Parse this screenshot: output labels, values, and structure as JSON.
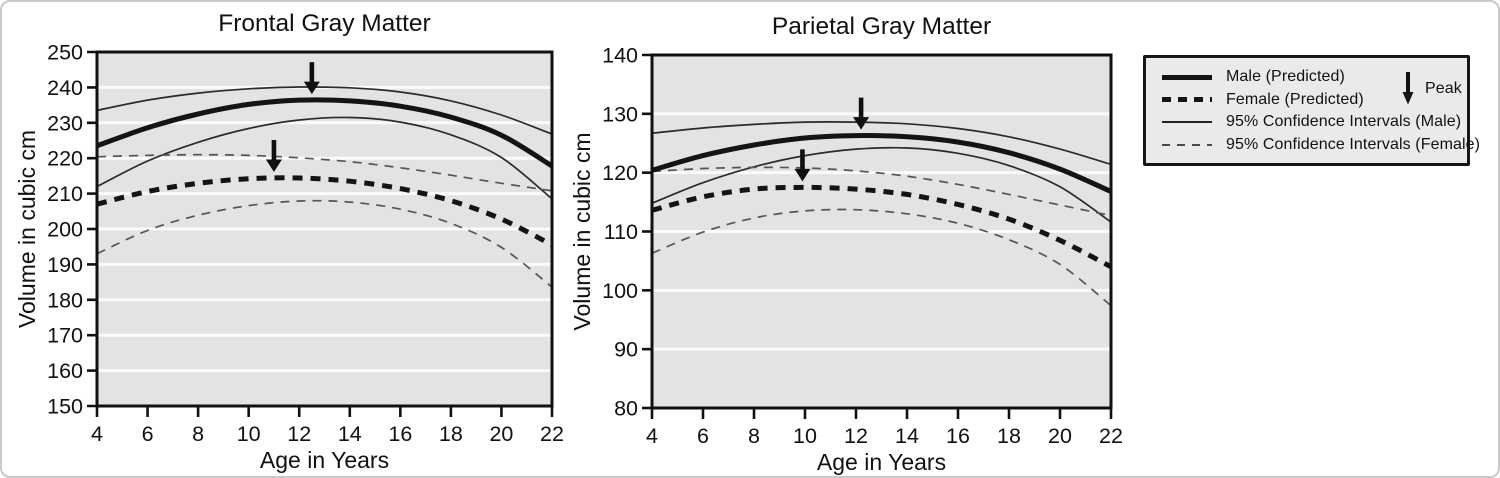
{
  "figure": {
    "background": "#ffffff",
    "border_color": "#c9c9c9",
    "plot_background": "#e3e3e3",
    "gridline_color": "#fbfbfb",
    "axis_color": "#111111",
    "legend_background": "#eaeaea"
  },
  "legend": {
    "items": [
      {
        "label": "Male (Predicted)",
        "style": "thick-solid"
      },
      {
        "label": "Female (Predicted)",
        "style": "thick-dashed"
      },
      {
        "label": "95% Confidence Intervals (Male)",
        "style": "thin-solid"
      },
      {
        "label": "95% Confidence Intervals (Female)",
        "style": "thin-dashed"
      }
    ],
    "peak_label": "Peak",
    "peak_icon": "down-arrow-icon"
  },
  "chart_data": [
    {
      "type": "line",
      "title": "Frontal Gray Matter",
      "xlabel": "Age in Years",
      "ylabel": "Volume in cubic cm",
      "xlim": [
        4,
        22
      ],
      "ylim": [
        150,
        250
      ],
      "xticks": [
        4,
        6,
        8,
        10,
        12,
        14,
        16,
        18,
        20,
        22
      ],
      "yticks": [
        150,
        160,
        170,
        180,
        190,
        200,
        210,
        220,
        230,
        240,
        250
      ],
      "grid": "horizontal-white",
      "legend_position": "outside-right",
      "x": [
        4,
        6,
        8,
        10,
        12,
        14,
        16,
        18,
        20,
        22
      ],
      "series": [
        {
          "name": "95% Confidence Intervals (Male) upper",
          "style": "thin-solid",
          "values": [
            233.5,
            236.4,
            238.4,
            239.6,
            240.1,
            239.9,
            238.7,
            236.2,
            232.2,
            226.8
          ]
        },
        {
          "name": "95% Confidence Intervals (Male) lower",
          "style": "thin-solid",
          "values": [
            212.0,
            219.2,
            224.5,
            228.4,
            230.8,
            231.5,
            230.2,
            226.6,
            220.2,
            208.5
          ]
        },
        {
          "name": "95% Confidence Intervals (Female) upper",
          "style": "thin-dashed",
          "values": [
            220.4,
            220.8,
            221.0,
            220.8,
            220.1,
            219.0,
            217.3,
            215.2,
            212.9,
            210.8
          ]
        },
        {
          "name": "95% Confidence Intervals (Female) lower",
          "style": "thin-dashed",
          "values": [
            193.0,
            199.6,
            203.9,
            206.6,
            207.9,
            207.6,
            205.6,
            201.6,
            194.8,
            183.6
          ]
        },
        {
          "name": "Male (Predicted)",
          "style": "thick-solid",
          "values": [
            223.5,
            228.6,
            232.5,
            235.2,
            236.4,
            236.2,
            234.7,
            231.6,
            226.5,
            217.8
          ]
        },
        {
          "name": "Female (Predicted)",
          "style": "thick-dashed",
          "values": [
            207.0,
            210.6,
            212.9,
            214.2,
            214.4,
            213.5,
            211.4,
            208.0,
            202.8,
            195.5
          ]
        }
      ],
      "peaks": [
        {
          "series": "Male (Predicted)",
          "age": 12.5,
          "value": 236.4
        },
        {
          "series": "Female (Predicted)",
          "age": 11.0,
          "value": 214.4
        }
      ]
    },
    {
      "type": "line",
      "title": "Parietal Gray Matter",
      "xlabel": "Age in Years",
      "ylabel": "Volume in cubic cm",
      "xlim": [
        4,
        22
      ],
      "ylim": [
        80,
        140
      ],
      "xticks": [
        4,
        6,
        8,
        10,
        12,
        14,
        16,
        18,
        20,
        22
      ],
      "yticks": [
        80,
        90,
        100,
        110,
        120,
        130,
        140
      ],
      "grid": "horizontal-white",
      "legend_position": "outside-right",
      "x": [
        4,
        6,
        8,
        10,
        12,
        14,
        16,
        18,
        20,
        22
      ],
      "series": [
        {
          "name": "95% Confidence Intervals (Male) upper",
          "style": "thin-solid",
          "values": [
            126.7,
            127.6,
            128.2,
            128.6,
            128.6,
            128.3,
            127.5,
            126.1,
            124.0,
            121.4
          ]
        },
        {
          "name": "95% Confidence Intervals (Male) lower",
          "style": "thin-solid",
          "values": [
            114.8,
            118.3,
            121.0,
            122.9,
            124.0,
            124.2,
            123.3,
            121.2,
            117.6,
            111.6
          ]
        },
        {
          "name": "95% Confidence Intervals (Female) upper",
          "style": "thin-dashed",
          "values": [
            120.2,
            120.7,
            120.9,
            120.8,
            120.3,
            119.4,
            118.0,
            116.3,
            114.5,
            112.7
          ]
        },
        {
          "name": "95% Confidence Intervals (Female) lower",
          "style": "thin-dashed",
          "values": [
            106.3,
            109.9,
            112.3,
            113.5,
            113.7,
            113.0,
            111.4,
            108.6,
            104.4,
            97.4
          ]
        },
        {
          "name": "Male (Predicted)",
          "style": "thick-solid",
          "values": [
            120.4,
            122.9,
            124.7,
            125.9,
            126.3,
            126.1,
            125.2,
            123.4,
            120.6,
            116.8
          ]
        },
        {
          "name": "Female (Predicted)",
          "style": "thick-dashed",
          "values": [
            113.6,
            115.9,
            117.2,
            117.5,
            117.2,
            116.3,
            114.6,
            112.1,
            108.5,
            104.0
          ]
        }
      ],
      "peaks": [
        {
          "series": "Male (Predicted)",
          "age": 12.2,
          "value": 126.3
        },
        {
          "series": "Female (Predicted)",
          "age": 9.9,
          "value": 117.5
        }
      ]
    }
  ]
}
